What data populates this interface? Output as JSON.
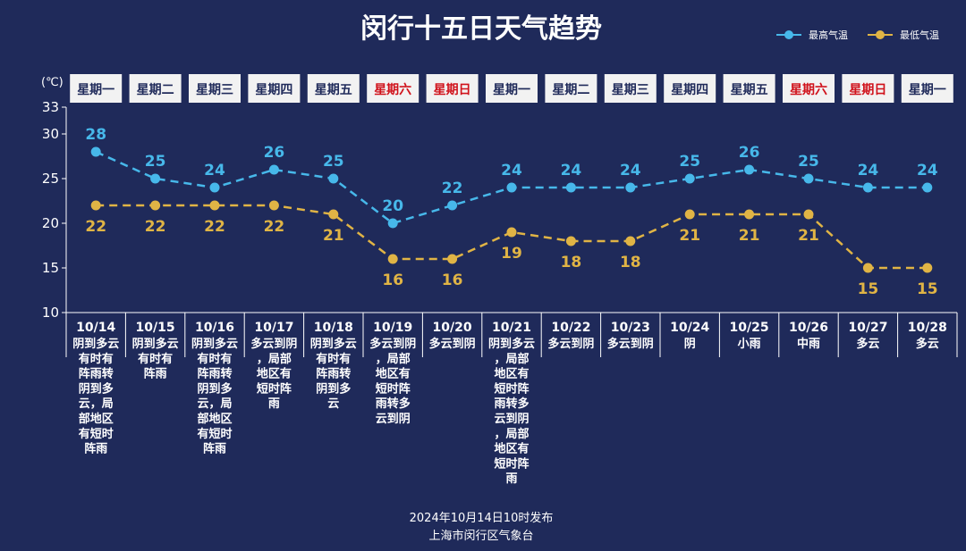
{
  "title": "闵行十五日天气趋势",
  "unit_label": "(℃)",
  "legend": [
    {
      "label": "最高气温",
      "color": "#47b8ea"
    },
    {
      "label": "最低气温",
      "color": "#e0b445"
    }
  ],
  "footer": {
    "line1": "2024年10月14日10时发布",
    "line2": "上海市闵行区气象台"
  },
  "colors": {
    "background": "#1f2a5a",
    "high": "#47b8ea",
    "low": "#e0b445",
    "weekday_box": "#f2f2f2",
    "weekday_text": "#1f2a5a",
    "weekend_text": "#d0121b"
  },
  "chart_data": {
    "type": "line",
    "categories": [
      "10/14",
      "10/15",
      "10/16",
      "10/17",
      "10/18",
      "10/19",
      "10/20",
      "10/21",
      "10/22",
      "10/23",
      "10/24",
      "10/25",
      "10/26",
      "10/27",
      "10/28"
    ],
    "weekdays": [
      "星期一",
      "星期二",
      "星期三",
      "星期四",
      "星期五",
      "星期六",
      "星期日",
      "星期一",
      "星期二",
      "星期三",
      "星期四",
      "星期五",
      "星期六",
      "星期日",
      "星期一"
    ],
    "weekend_flags": [
      false,
      false,
      false,
      false,
      false,
      true,
      true,
      false,
      false,
      false,
      false,
      false,
      true,
      true,
      false
    ],
    "descriptions": [
      [
        "阴到多云",
        "有时有",
        "阵雨转",
        "阴到多",
        "云，局",
        "部地区",
        "有短时",
        "阵雨"
      ],
      [
        "阴到多云",
        "有时有",
        "阵雨"
      ],
      [
        "阴到多云",
        "有时有",
        "阵雨转",
        "阴到多",
        "云，局",
        "部地区",
        "有短时",
        "阵雨"
      ],
      [
        "多云到阴",
        "，局部",
        "地区有",
        "短时阵",
        "雨"
      ],
      [
        "阴到多云",
        "有时有",
        "阵雨转",
        "阴到多",
        "云"
      ],
      [
        "多云到阴",
        "，局部",
        "地区有",
        "短时阵",
        "雨转多",
        "云到阴"
      ],
      [
        "多云到阴"
      ],
      [
        "阴到多云",
        "，局部",
        "地区有",
        "短时阵",
        "雨转多",
        "云到阴",
        "，局部",
        "地区有",
        "短时阵",
        "雨"
      ],
      [
        "多云到阴"
      ],
      [
        "多云到阴"
      ],
      [
        "阴"
      ],
      [
        "小雨"
      ],
      [
        "中雨"
      ],
      [
        "多云"
      ],
      [
        "多云"
      ]
    ],
    "series": [
      {
        "name": "最高气温",
        "values": [
          28,
          25,
          24,
          26,
          25,
          20,
          22,
          24,
          24,
          24,
          25,
          26,
          25,
          24,
          24
        ]
      },
      {
        "name": "最低气温",
        "values": [
          22,
          22,
          22,
          22,
          21,
          16,
          16,
          19,
          18,
          18,
          21,
          21,
          21,
          15,
          15
        ]
      }
    ],
    "ylim": [
      10,
      33
    ],
    "yticks": [
      10,
      15,
      20,
      25,
      30,
      33
    ],
    "legend_position": "top-right",
    "grid": false
  }
}
